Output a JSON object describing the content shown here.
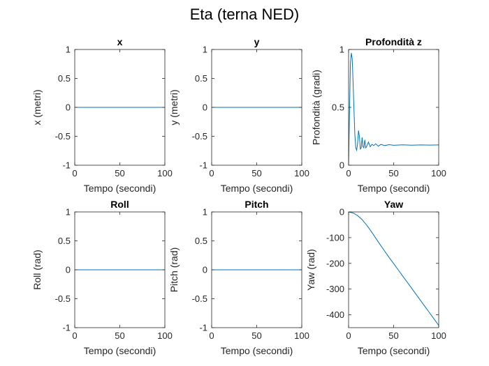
{
  "figure": {
    "suptitle": "Eta (terna NED)"
  },
  "chart_data": [
    {
      "type": "line",
      "title": "x",
      "xlabel": "Tempo (secondi)",
      "ylabel": "x (metri)",
      "xlim": [
        0,
        100
      ],
      "ylim": [
        -1,
        1
      ],
      "xticks": [
        0,
        50,
        100
      ],
      "xtick_labels": [
        "0",
        "50",
        "100"
      ],
      "yticks": [
        -1,
        -0.5,
        0,
        0.5,
        1
      ],
      "ytick_labels": [
        "-1",
        "-0.5",
        "0",
        "0.5",
        "1"
      ],
      "series": [
        {
          "color": "#0072bd",
          "x": [
            0,
            100
          ],
          "y": [
            0,
            0
          ]
        }
      ]
    },
    {
      "type": "line",
      "title": "y",
      "xlabel": "Tempo (secondi)",
      "ylabel": "y (metri)",
      "xlim": [
        0,
        100
      ],
      "ylim": [
        -1,
        1
      ],
      "xticks": [
        0,
        50,
        100
      ],
      "xtick_labels": [
        "0",
        "50",
        "100"
      ],
      "yticks": [
        -1,
        -0.5,
        0,
        0.5,
        1
      ],
      "ytick_labels": [
        "-1",
        "-0.5",
        "0",
        "0.5",
        "1"
      ],
      "series": [
        {
          "color": "#0072bd",
          "x": [
            0,
            100
          ],
          "y": [
            0,
            0
          ]
        }
      ]
    },
    {
      "type": "line",
      "title": "Profondità z",
      "xlabel": "Tempo (secondi)",
      "ylabel": "Profondità (gradi)",
      "xlim": [
        0,
        100
      ],
      "ylim": [
        0,
        1
      ],
      "xticks": [
        0,
        50,
        100
      ],
      "xtick_labels": [
        "0",
        "50",
        "100"
      ],
      "yticks": [
        0,
        0.5,
        1
      ],
      "ytick_labels": [
        "0",
        "0.5",
        "1"
      ],
      "series": [
        {
          "color": "#0072bd",
          "x": [
            0,
            1,
            2,
            3,
            4,
            5,
            6,
            7,
            8,
            9,
            10,
            11,
            12,
            13,
            14,
            15,
            16,
            17,
            18,
            19,
            20,
            22,
            24,
            26,
            28,
            30,
            33,
            36,
            40,
            45,
            50,
            60,
            70,
            80,
            90,
            100
          ],
          "y": [
            0.0,
            0.45,
            0.88,
            0.97,
            0.92,
            0.72,
            0.48,
            0.26,
            0.15,
            0.13,
            0.19,
            0.3,
            0.25,
            0.14,
            0.15,
            0.24,
            0.16,
            0.15,
            0.22,
            0.15,
            0.16,
            0.2,
            0.16,
            0.18,
            0.17,
            0.185,
            0.165,
            0.18,
            0.17,
            0.178,
            0.172,
            0.176,
            0.173,
            0.175,
            0.174,
            0.175
          ]
        }
      ]
    },
    {
      "type": "line",
      "title": "Roll",
      "xlabel": "Tempo (secondi)",
      "ylabel": "Roll (rad)",
      "xlim": [
        0,
        100
      ],
      "ylim": [
        -1,
        1
      ],
      "xticks": [
        0,
        50,
        100
      ],
      "xtick_labels": [
        "0",
        "50",
        "100"
      ],
      "yticks": [
        -1,
        -0.5,
        0,
        0.5,
        1
      ],
      "ytick_labels": [
        "-1",
        "-0.5",
        "0",
        "0.5",
        "1"
      ],
      "series": [
        {
          "color": "#0072bd",
          "x": [
            0,
            100
          ],
          "y": [
            0,
            0
          ]
        }
      ]
    },
    {
      "type": "line",
      "title": "Pitch",
      "xlabel": "Tempo (secondi)",
      "ylabel": "Pitch (rad)",
      "xlim": [
        0,
        100
      ],
      "ylim": [
        -1,
        1
      ],
      "xticks": [
        0,
        50,
        100
      ],
      "xtick_labels": [
        "0",
        "50",
        "100"
      ],
      "yticks": [
        -1,
        -0.5,
        0,
        0.5,
        1
      ],
      "ytick_labels": [
        "-1",
        "-0.5",
        "0",
        "0.5",
        "1"
      ],
      "series": [
        {
          "color": "#0072bd",
          "x": [
            0,
            100
          ],
          "y": [
            0,
            0
          ]
        }
      ]
    },
    {
      "type": "line",
      "title": "Yaw",
      "xlabel": "Tempo (secondi)",
      "ylabel": "Yaw (rad)",
      "xlim": [
        0,
        100
      ],
      "ylim": [
        -450,
        0
      ],
      "xticks": [
        0,
        50,
        100
      ],
      "xtick_labels": [
        "0",
        "50",
        "100"
      ],
      "yticks": [
        -400,
        -300,
        -200,
        -100,
        0
      ],
      "ytick_labels": [
        "-400",
        "-300",
        "-200",
        "-100",
        "0"
      ],
      "series": [
        {
          "color": "#0072bd",
          "x": [
            0,
            5,
            10,
            15,
            20,
            25,
            30,
            35,
            40,
            45,
            50,
            55,
            60,
            65,
            70,
            75,
            80,
            85,
            90,
            95,
            100
          ],
          "y": [
            0,
            -4,
            -14,
            -30,
            -51,
            -75,
            -101,
            -127,
            -152,
            -177,
            -201,
            -225,
            -249,
            -273,
            -297,
            -321,
            -345,
            -369,
            -393,
            -417,
            -441
          ]
        }
      ]
    }
  ]
}
